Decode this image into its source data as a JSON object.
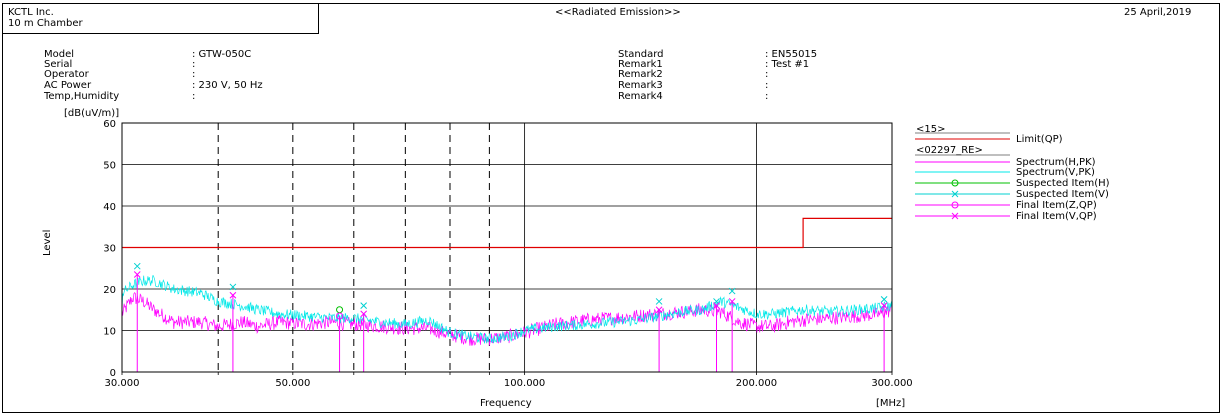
{
  "header": {
    "company": "KCTL Inc.",
    "site": "10 m Chamber",
    "title": "<<Radiated Emission>>",
    "date": "25 April,2019"
  },
  "info_left": [
    {
      "label": "Model",
      "value": ": GTW-050C"
    },
    {
      "label": "Serial",
      "value": ":"
    },
    {
      "label": "Operator",
      "value": ":"
    },
    {
      "label": "AC Power",
      "value": ": 230 V, 50 Hz"
    },
    {
      "label": "Temp,Humidity",
      "value": ":"
    }
  ],
  "info_right": [
    {
      "label": "Standard",
      "value": ": EN55015"
    },
    {
      "label": "Remark1",
      "value": ": Test #1"
    },
    {
      "label": "Remark2",
      "value": ":"
    },
    {
      "label": "Remark3",
      "value": ":"
    },
    {
      "label": "Remark4",
      "value": ":"
    }
  ],
  "colors": {
    "limit": "#e00000",
    "spectrum_h": "#ff00ff",
    "spectrum_v": "#00e8e8",
    "suspected_h": "#00c000",
    "suspected_v": "#00d0d0",
    "final_z": "#ff00ff",
    "final_v": "#ff00ff"
  },
  "legend": {
    "group1_header": "<15>",
    "group2_header": "<02297_RE>",
    "items": [
      {
        "label": "Limit(QP)",
        "color": "#e00000",
        "marker": "none"
      },
      {
        "label": "Spectrum(H,PK)",
        "color": "#ff00ff",
        "marker": "none"
      },
      {
        "label": "Spectrum(V,PK)",
        "color": "#00e8e8",
        "marker": "none"
      },
      {
        "label": "Suspected Item(H)",
        "color": "#00c000",
        "marker": "circle"
      },
      {
        "label": "Suspected Item(V)",
        "color": "#00d0d0",
        "marker": "cross"
      },
      {
        "label": "Final Item(Z,QP)",
        "color": "#ff00ff",
        "marker": "circle"
      },
      {
        "label": "Final Item(V,QP)",
        "color": "#ff00ff",
        "marker": "cross"
      }
    ]
  },
  "chart_data": {
    "type": "line",
    "title": "",
    "xlabel": "Frequency",
    "xunit": "[MHz]",
    "ylabel": "Level",
    "yunit": "[dB(uV/m)]",
    "x_scale": "log",
    "xlim": [
      30,
      300
    ],
    "ylim": [
      0,
      60
    ],
    "x_ticks": [
      {
        "value": 30,
        "label": "30.000"
      },
      {
        "value": 50,
        "label": "50.000"
      },
      {
        "value": 100,
        "label": "100.000"
      },
      {
        "value": 200,
        "label": "200.000"
      },
      {
        "value": 300,
        "label": "300.000"
      }
    ],
    "x_dashed_gridlines": [
      40,
      50,
      60,
      70,
      80,
      90
    ],
    "x_solid_gridlines": [
      100,
      200
    ],
    "y_ticks": [
      0,
      10,
      20,
      30,
      40,
      50,
      60
    ],
    "grid": true,
    "legend_position": "right",
    "limit_qp": [
      {
        "x": 30,
        "y": 30
      },
      {
        "x": 230,
        "y": 30
      },
      {
        "x": 230,
        "y": 37
      },
      {
        "x": 300,
        "y": 37
      }
    ],
    "series": [
      {
        "name": "Spectrum(H,PK)",
        "x": [
          30,
          31,
          32,
          33,
          35,
          38,
          40,
          43,
          45,
          48,
          52,
          56,
          60,
          65,
          70,
          75,
          80,
          85,
          90,
          95,
          100,
          110,
          120,
          130,
          140,
          150,
          160,
          170,
          180,
          190,
          200,
          210,
          220,
          230,
          250,
          270,
          290,
          300
        ],
        "y": [
          14,
          18,
          17,
          15,
          12,
          12,
          11,
          12,
          11,
          12,
          11.5,
          12,
          11.5,
          11,
          10.5,
          10.5,
          9,
          8,
          8,
          8.5,
          9.5,
          11.5,
          12.5,
          13,
          13.5,
          14,
          14.5,
          15,
          14.5,
          12,
          11,
          11,
          12,
          12.5,
          13,
          13.5,
          14,
          15
        ]
      },
      {
        "name": "Spectrum(V,PK)",
        "x": [
          30,
          31,
          32,
          33,
          35,
          38,
          40,
          43,
          45,
          48,
          52,
          56,
          60,
          65,
          70,
          75,
          80,
          85,
          90,
          95,
          100,
          110,
          120,
          130,
          140,
          150,
          160,
          170,
          180,
          190,
          200,
          210,
          220,
          230,
          250,
          270,
          290,
          300
        ],
        "y": [
          19,
          21,
          22,
          22,
          20,
          19,
          17,
          16,
          15,
          14,
          13.5,
          13,
          13,
          12,
          11.5,
          12.5,
          9.5,
          8.5,
          8,
          8.5,
          10,
          11,
          11.5,
          12,
          12.5,
          13.5,
          14.5,
          15,
          17,
          15.5,
          14,
          14,
          14.5,
          15,
          14.5,
          15,
          15.5,
          16
        ]
      }
    ],
    "suspected_h": [
      {
        "x": 57.5,
        "y": 15
      }
    ],
    "suspected_v": [
      {
        "x": 31.4,
        "y": 25.5
      },
      {
        "x": 41.8,
        "y": 20.5
      },
      {
        "x": 61.8,
        "y": 16
      },
      {
        "x": 149.5,
        "y": 17
      },
      {
        "x": 177.5,
        "y": 17
      },
      {
        "x": 186,
        "y": 19.5
      },
      {
        "x": 293,
        "y": 17.5
      }
    ],
    "final_z_qp": [
      {
        "x": 57.5,
        "y": 13.5
      }
    ],
    "final_v_qp": [
      {
        "x": 31.4,
        "y": 23.5
      },
      {
        "x": 41.8,
        "y": 18.5
      },
      {
        "x": 61.8,
        "y": 14
      },
      {
        "x": 149.5,
        "y": 15
      },
      {
        "x": 177.5,
        "y": 16
      },
      {
        "x": 186,
        "y": 17
      },
      {
        "x": 293,
        "y": 16
      }
    ]
  }
}
